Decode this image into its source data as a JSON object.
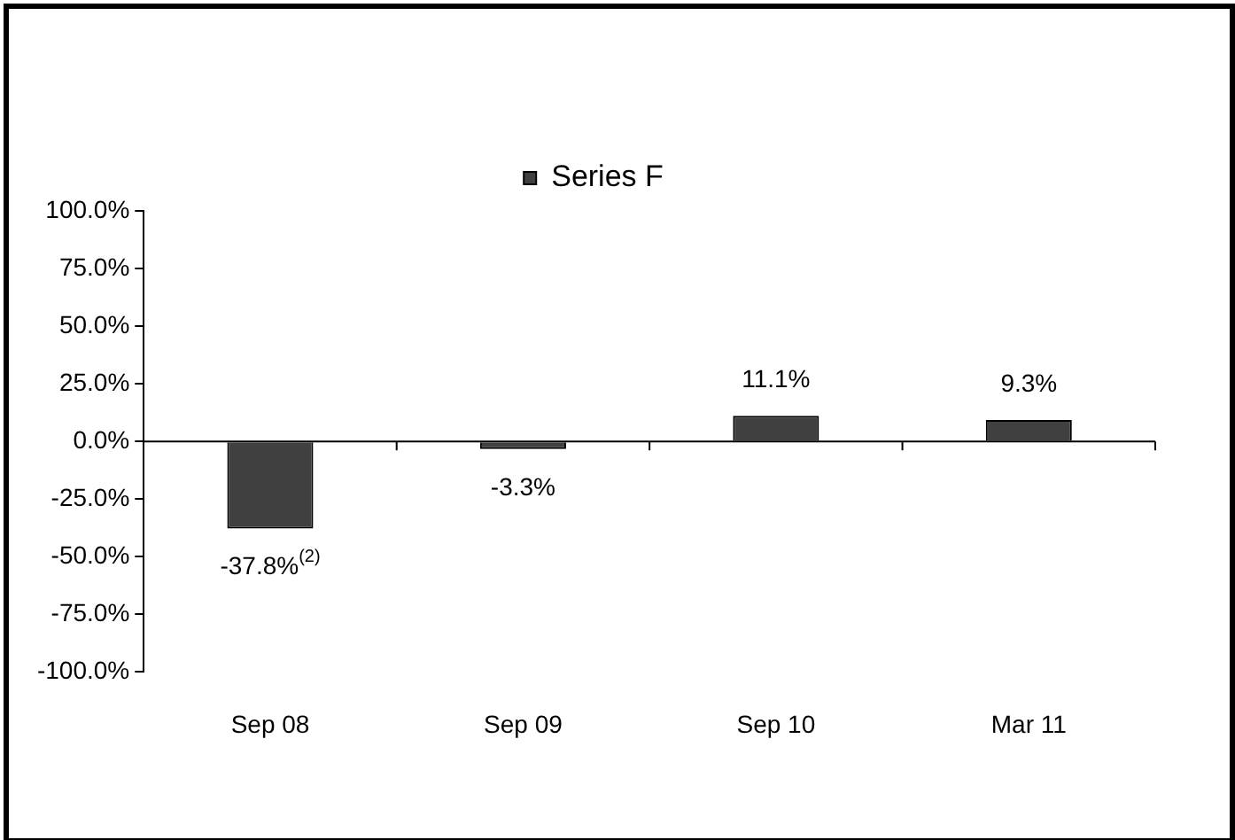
{
  "chart_data": {
    "type": "bar",
    "categories": [
      "Sep 08",
      "Sep 09",
      "Sep 10",
      "Mar 11"
    ],
    "series": [
      {
        "name": "Series F",
        "color": "#404040",
        "values": [
          -37.8,
          -3.3,
          11.1,
          9.3
        ],
        "value_labels": [
          "-37.8%$^{(2)}$",
          "-3.3%",
          "11.1%",
          "9.3%"
        ]
      }
    ],
    "ylim": [
      -100,
      100
    ],
    "yticks": [
      {
        "value": -100,
        "label": "-100.0%"
      },
      {
        "value": -75,
        "label": "-75.0%"
      },
      {
        "value": -50,
        "label": "-50.0%"
      },
      {
        "value": -25,
        "label": "-25.0%"
      },
      {
        "value": 0,
        "label": "0.0%"
      },
      {
        "value": 25,
        "label": "25.0%"
      },
      {
        "value": 50,
        "label": "50.0%"
      },
      {
        "value": 75,
        "label": "75.0%"
      },
      {
        "value": 100,
        "label": "100.0%"
      }
    ],
    "legend": "top"
  }
}
